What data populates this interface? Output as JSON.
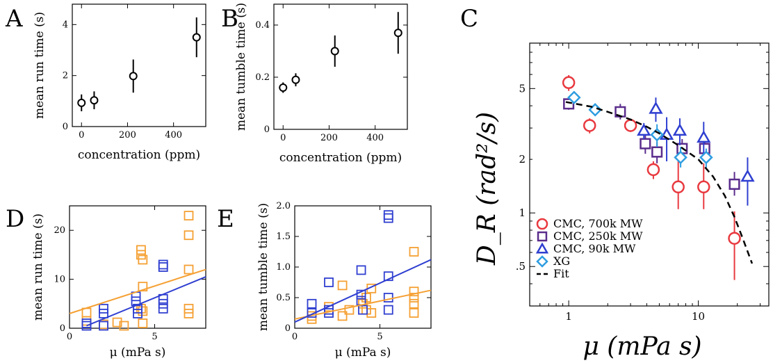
{
  "figure": {
    "panel_letters": [
      "A",
      "B",
      "C",
      "D",
      "E"
    ]
  },
  "chart_data": [
    {
      "id": "A",
      "type": "scatter",
      "xlabel": "concentration (ppm)",
      "ylabel": "mean run time (s)",
      "xlim": [
        -40,
        540
      ],
      "ylim": [
        0,
        4.8
      ],
      "xticks": [
        0,
        200,
        400
      ],
      "yticks": [
        0,
        2,
        4
      ],
      "points": [
        {
          "x": 0,
          "y": 0.93,
          "err": 0.33
        },
        {
          "x": 55,
          "y": 1.03,
          "err": 0.35
        },
        {
          "x": 225,
          "y": 1.98,
          "err": 0.65
        },
        {
          "x": 500,
          "y": 3.5,
          "err": 0.78
        }
      ],
      "color": "#000000"
    },
    {
      "id": "B",
      "type": "scatter",
      "xlabel": "concentration (ppm)",
      "ylabel": "mean tumble time (s)",
      "xlim": [
        -40,
        540
      ],
      "ylim": [
        0,
        0.48
      ],
      "xticks": [
        0,
        200,
        400
      ],
      "yticks": [
        0,
        0.2,
        0.4
      ],
      "ytick_labels": [
        "0",
        "0.2",
        "0.4"
      ],
      "points": [
        {
          "x": 0,
          "y": 0.16,
          "err": 0.02
        },
        {
          "x": 55,
          "y": 0.19,
          "err": 0.025
        },
        {
          "x": 225,
          "y": 0.3,
          "err": 0.06
        },
        {
          "x": 500,
          "y": 0.37,
          "err": 0.08
        }
      ],
      "color": "#000000"
    },
    {
      "id": "C",
      "type": "scatter",
      "log_x": true,
      "log_y": true,
      "xlabel": "μ (mPa s)",
      "ylabel": "D_R (rad²/s)",
      "xlim": [
        0.5,
        35
      ],
      "ylim": [
        0.3,
        9
      ],
      "xticks": [
        1,
        10
      ],
      "yticks": [
        0.5,
        1,
        2,
        5
      ],
      "ytick_labels": [
        ".5",
        "1",
        "2",
        "5"
      ],
      "legend_position": "bottom-left",
      "series": [
        {
          "name": "CMC, 700k MW",
          "marker": "circle",
          "color": "#e8393f",
          "points": [
            {
              "x": 1.0,
              "y": 5.4,
              "err_lo": 0.55,
              "err_hi": 0.55
            },
            {
              "x": 1.45,
              "y": 3.1,
              "err_lo": 0.3,
              "err_hi": 0.3
            },
            {
              "x": 3.0,
              "y": 3.1,
              "err_lo": 0.25,
              "err_hi": 0.25
            },
            {
              "x": 4.5,
              "y": 1.75,
              "err_lo": 0.2,
              "err_hi": 0.2
            },
            {
              "x": 7.0,
              "y": 1.4,
              "err_lo": 0.35,
              "err_hi": 0.55
            },
            {
              "x": 11.0,
              "y": 1.4,
              "err_lo": 0.35,
              "err_hi": 0.5
            },
            {
              "x": 19.0,
              "y": 0.72,
              "err_lo": 0.3,
              "err_hi": 0.3
            }
          ]
        },
        {
          "name": "CMC, 250k MW",
          "marker": "square",
          "color": "#5a2d8c",
          "points": [
            {
              "x": 1.0,
              "y": 4.1,
              "err_lo": 0.3,
              "err_hi": 0.3
            },
            {
              "x": 2.5,
              "y": 3.7,
              "err_lo": 0.35,
              "err_hi": 0.4
            },
            {
              "x": 3.9,
              "y": 2.45,
              "err_lo": 0.3,
              "err_hi": 0.3
            },
            {
              "x": 4.8,
              "y": 2.2,
              "err_lo": 0.3,
              "err_hi": 0.3
            },
            {
              "x": 7.5,
              "y": 2.3,
              "err_lo": 0.3,
              "err_hi": 0.3
            },
            {
              "x": 11.2,
              "y": 2.3,
              "err_lo": 0.25,
              "err_hi": 0.25
            },
            {
              "x": 19.0,
              "y": 1.45,
              "err_lo": 0.2,
              "err_hi": 0.25
            }
          ]
        },
        {
          "name": "CMC, 90k MW",
          "marker": "triangle",
          "color": "#2f3fd0",
          "points": [
            {
              "x": 3.8,
              "y": 2.9,
              "err_lo": 0.3,
              "err_hi": 0.3
            },
            {
              "x": 4.7,
              "y": 3.85,
              "err_lo": 0.6,
              "err_hi": 0.6
            },
            {
              "x": 5.7,
              "y": 2.75,
              "err_lo": 0.8,
              "err_hi": 0.7
            },
            {
              "x": 7.2,
              "y": 2.9,
              "err_lo": 0.5,
              "err_hi": 0.5
            },
            {
              "x": 11.0,
              "y": 2.65,
              "err_lo": 0.6,
              "err_hi": 0.6
            },
            {
              "x": 24.0,
              "y": 1.6,
              "err_lo": 0.5,
              "err_hi": 0.45
            }
          ]
        },
        {
          "name": "XG",
          "marker": "diamond",
          "color": "#2e9de0",
          "points": [
            {
              "x": 1.1,
              "y": 4.45,
              "err_lo": 0.3,
              "err_hi": 0.3
            },
            {
              "x": 1.6,
              "y": 3.8,
              "err_lo": 0.25,
              "err_hi": 0.25
            },
            {
              "x": 4.8,
              "y": 2.75,
              "err_lo": 0.4,
              "err_hi": 0.4
            },
            {
              "x": 7.3,
              "y": 2.05,
              "err_lo": 0.25,
              "err_hi": 0.3
            },
            {
              "x": 11.5,
              "y": 2.05,
              "err_lo": 0.25,
              "err_hi": 0.25
            }
          ]
        },
        {
          "name": "Fit",
          "marker": "dashed-line",
          "color": "#000000",
          "line": [
            {
              "x": 0.95,
              "y": 4.2
            },
            {
              "x": 1.5,
              "y": 3.95
            },
            {
              "x": 2.0,
              "y": 3.7
            },
            {
              "x": 3.0,
              "y": 3.35
            },
            {
              "x": 4.0,
              "y": 3.05
            },
            {
              "x": 5.0,
              "y": 2.8
            },
            {
              "x": 7.0,
              "y": 2.4
            },
            {
              "x": 10.0,
              "y": 2.0
            },
            {
              "x": 13.0,
              "y": 1.6
            },
            {
              "x": 16.0,
              "y": 1.25
            },
            {
              "x": 19.0,
              "y": 0.95
            },
            {
              "x": 22.0,
              "y": 0.72
            },
            {
              "x": 26.0,
              "y": 0.52
            }
          ]
        }
      ]
    },
    {
      "id": "D",
      "type": "scatter",
      "xlabel": "μ (mPa s)",
      "ylabel": "mean run time (s)",
      "xlim": [
        0,
        8
      ],
      "ylim": [
        0,
        25
      ],
      "xticks": [
        0,
        5
      ],
      "yticks": [
        0,
        10,
        20
      ],
      "series": [
        {
          "color": "#f5a033",
          "points": [
            [
              1,
              3.2
            ],
            [
              1,
              1.5
            ],
            [
              2,
              0.8
            ],
            [
              2.8,
              1.2
            ],
            [
              3.2,
              0.5
            ],
            [
              4.2,
              16
            ],
            [
              4.2,
              15
            ],
            [
              4.3,
              14
            ],
            [
              4.3,
              8.5
            ],
            [
              4.2,
              4
            ],
            [
              4.3,
              3.5
            ],
            [
              4.3,
              1
            ],
            [
              7,
              23
            ],
            [
              7,
              19
            ],
            [
              7,
              12
            ],
            [
              7,
              4
            ],
            [
              7,
              3
            ]
          ],
          "fit": [
            [
              0,
              3
            ],
            [
              8,
              12
            ]
          ]
        },
        {
          "color": "#2f3fd0",
          "points": [
            [
              1,
              0.5
            ],
            [
              1,
              1
            ],
            [
              2,
              4
            ],
            [
              2,
              3
            ],
            [
              2,
              0.5
            ],
            [
              3.9,
              6.5
            ],
            [
              3.9,
              5.5
            ],
            [
              4,
              4
            ],
            [
              4,
              3
            ],
            [
              5.5,
              13
            ],
            [
              5.5,
              12.5
            ],
            [
              5.5,
              6
            ],
            [
              5.5,
              5
            ],
            [
              5.5,
              4
            ]
          ],
          "fit": [
            [
              1,
              0.5
            ],
            [
              8,
              10.5
            ]
          ]
        }
      ]
    },
    {
      "id": "E",
      "type": "scatter",
      "xlabel": "μ (mPa s)",
      "ylabel": "mean tumble time (s)",
      "xlim": [
        0,
        8
      ],
      "ylim": [
        0,
        2.0
      ],
      "xticks": [
        0,
        5
      ],
      "yticks": [
        0,
        0.5,
        1.0,
        1.5,
        2.0
      ],
      "ytick_labels": [
        "0",
        "0.5",
        "1.0",
        "1.5",
        "2.0"
      ],
      "series": [
        {
          "color": "#f5a033",
          "points": [
            [
              1,
              0.2
            ],
            [
              1,
              0.15
            ],
            [
              2,
              0.35
            ],
            [
              2,
              0.3
            ],
            [
              2.8,
              0.7
            ],
            [
              2.8,
              0.2
            ],
            [
              3.2,
              0.3
            ],
            [
              4,
              0.4
            ],
            [
              4.2,
              0.5
            ],
            [
              4.2,
              0.3
            ],
            [
              4.5,
              0.25
            ],
            [
              4.5,
              0.65
            ],
            [
              7,
              1.25
            ],
            [
              7,
              0.6
            ],
            [
              7,
              0.5
            ],
            [
              7,
              0.4
            ],
            [
              7,
              0.25
            ]
          ],
          "fit": [
            [
              0,
              0.15
            ],
            [
              8,
              0.62
            ]
          ]
        },
        {
          "color": "#2f3fd0",
          "points": [
            [
              1,
              0.4
            ],
            [
              1,
              0.25
            ],
            [
              2,
              0.75
            ],
            [
              2,
              0.3
            ],
            [
              2,
              0.25
            ],
            [
              3.9,
              0.95
            ],
            [
              3.9,
              0.55
            ],
            [
              3.9,
              0.45
            ],
            [
              4,
              0.3
            ],
            [
              5.5,
              1.85
            ],
            [
              5.5,
              1.8
            ],
            [
              5.5,
              0.85
            ],
            [
              5.5,
              0.5
            ],
            [
              5.5,
              0.3
            ]
          ],
          "fit": [
            [
              0,
              0.1
            ],
            [
              8,
              1.12
            ]
          ]
        }
      ]
    }
  ]
}
